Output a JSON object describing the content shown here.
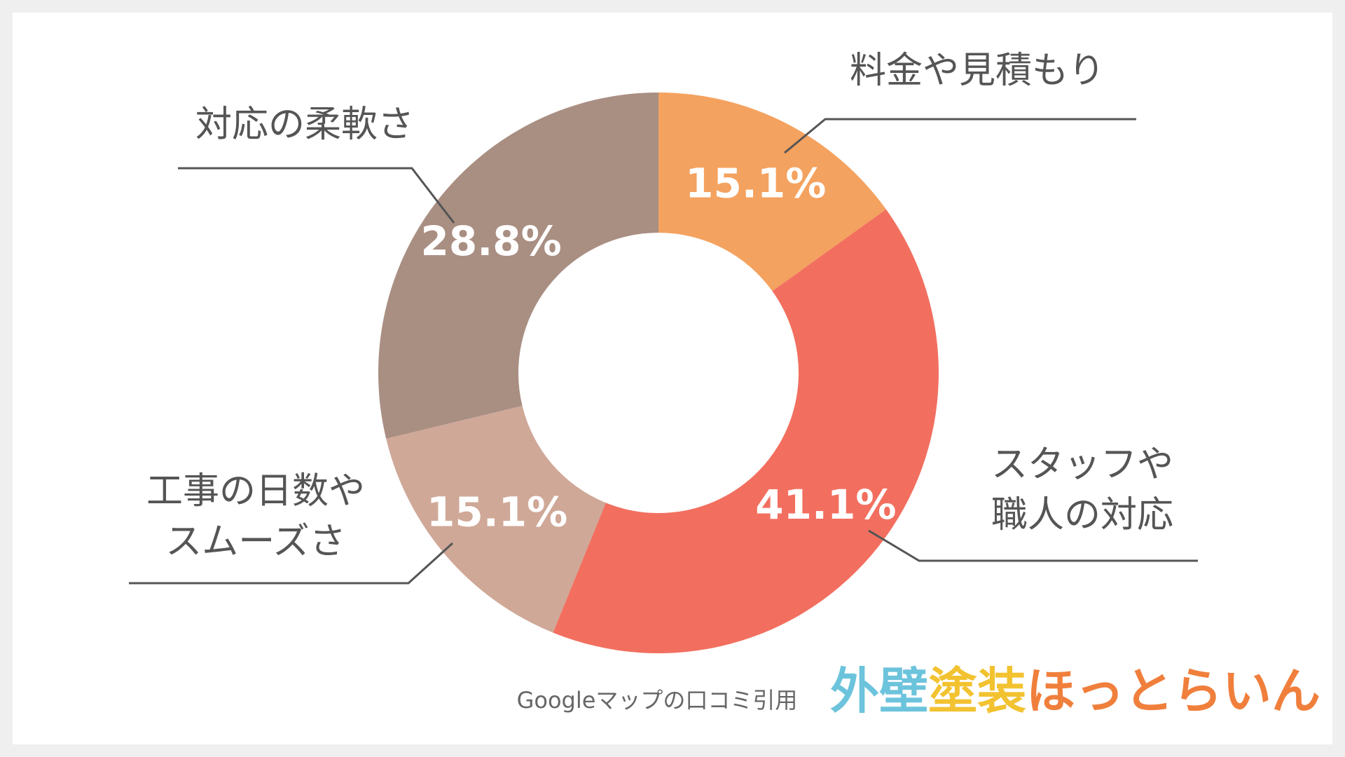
{
  "chart_data": {
    "type": "pie",
    "variant": "donut",
    "categories": [
      "料金や見積もり",
      "スタッフや職人の対応",
      "工事の日数やスムーズさ",
      "対応の柔軟さ"
    ],
    "label_lines": [
      [
        "料金や見積もり"
      ],
      [
        "スタッフや",
        "職人の対応"
      ],
      [
        "工事の日数や",
        "スムーズさ"
      ],
      [
        "対応の柔軟さ"
      ]
    ],
    "values": [
      15.1,
      41.1,
      15.1,
      28.8
    ],
    "value_labels": [
      "15.1%",
      "41.1%",
      "15.1%",
      "28.8%"
    ],
    "colors": [
      "#f4a25f",
      "#f26f5f",
      "#cfa898",
      "#a98e82"
    ],
    "start": "top",
    "direction": "clockwise",
    "legend": "none"
  },
  "source_note": "Googleマップの口コミ引用",
  "logo": {
    "text": "外壁塗装ほっとらいん",
    "parts": [
      {
        "text": "外壁",
        "color": "#6cc3dc"
      },
      {
        "text": "塗装",
        "color": "#f2c230"
      },
      {
        "text": "ほっとらいん",
        "color": "#f07f3c"
      }
    ]
  }
}
